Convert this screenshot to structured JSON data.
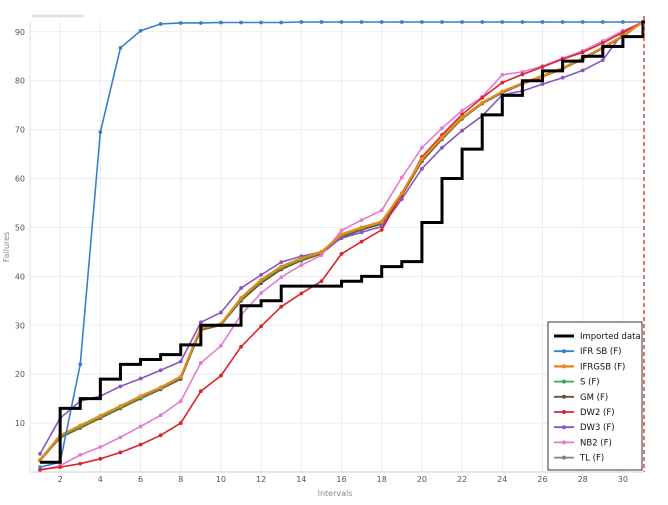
{
  "chart_data": {
    "type": "line",
    "xlabel": "Intervals",
    "ylabel": "Failures",
    "xlim": [
      0.5,
      31.1
    ],
    "ylim": [
      0,
      92
    ],
    "grid": true,
    "legend_position": "bottom-right",
    "x_ticks": [
      2,
      4,
      6,
      8,
      10,
      12,
      14,
      16,
      18,
      20,
      22,
      24,
      26,
      28,
      30
    ],
    "y_ticks": [
      10,
      20,
      30,
      40,
      50,
      60,
      70,
      80,
      90
    ],
    "x": [
      1,
      2,
      3,
      4,
      5,
      6,
      7,
      8,
      9,
      10,
      11,
      12,
      13,
      14,
      15,
      16,
      17,
      18,
      19,
      20,
      21,
      22,
      23,
      24,
      25,
      26,
      27,
      28,
      29,
      30,
      31
    ],
    "vertical_marker_x": 31,
    "colors": {
      "imported": "#000000",
      "ifr_sb": "#3a80c8",
      "ifrgsb": "#e8891e",
      "s": "#3aa84a",
      "gm": "#7a4a2a",
      "dw2": "#d9262a",
      "dw3": "#8a55c0",
      "nb2": "#e47bd0",
      "tl": "#7f7f7f",
      "marker_line": "#d9262a",
      "grid": "#ececec"
    },
    "imported_data": {
      "name": "Imported data",
      "values": [
        2,
        13,
        15,
        19,
        22,
        23,
        24,
        26,
        30,
        30,
        34,
        35,
        38,
        38,
        38,
        39,
        40,
        42,
        43,
        51,
        60,
        66,
        73,
        77,
        80,
        82,
        84,
        85,
        87,
        89,
        92
      ]
    },
    "series": [
      {
        "name": "IFR SB (F)",
        "color_key": "ifr_sb",
        "values": [
          1,
          2,
          22,
          69.5,
          86.7,
          90.2,
          91.6,
          91.8,
          91.8,
          91.9,
          91.9,
          91.9,
          91.9,
          92,
          92,
          92,
          92,
          92,
          92,
          92,
          92,
          92,
          92,
          92,
          92,
          92,
          92,
          92,
          92,
          92,
          92
        ]
      },
      {
        "name": "IFRGSB (F)",
        "color_key": "ifrgsb",
        "values": [
          2.5,
          7.5,
          9.5,
          11.5,
          13.5,
          15.5,
          17.3,
          19.5,
          29.5,
          30.3,
          35.6,
          39.3,
          42,
          43.7,
          45,
          48.6,
          50,
          51.2,
          57,
          64,
          68.4,
          72.5,
          75.5,
          77.8,
          79.5,
          81,
          82.6,
          84.6,
          86.8,
          89.2,
          92
        ]
      },
      {
        "name": "S (F)",
        "color_key": "s",
        "values": [
          2.4,
          7.2,
          9.2,
          11.2,
          13.2,
          15.2,
          17.1,
          19.3,
          29.3,
          30.1,
          35.3,
          39,
          41.7,
          43.4,
          44.8,
          48.3,
          49.8,
          51,
          56.8,
          63.8,
          68.2,
          72.3,
          75.4,
          77.6,
          79.4,
          80.9,
          82.5,
          84.5,
          86.7,
          89.1,
          92
        ]
      },
      {
        "name": "GM (F)",
        "color_key": "gm",
        "values": [
          2.3,
          7,
          9,
          11,
          13,
          15,
          16.9,
          19,
          29,
          30,
          35,
          38.6,
          41.4,
          43.2,
          44.6,
          48,
          49.5,
          50.7,
          56.5,
          63.5,
          68,
          72.2,
          75.3,
          77.5,
          79.3,
          80.8,
          82.4,
          84.4,
          86.6,
          89,
          92
        ]
      },
      {
        "name": "DW2 (F)",
        "color_key": "dw2",
        "values": [
          0.5,
          1,
          1.7,
          2.7,
          4,
          5.6,
          7.5,
          10,
          16.5,
          19.7,
          25.6,
          29.8,
          33.8,
          36.5,
          39,
          44.6,
          47.1,
          49.5,
          56.7,
          64.4,
          68.9,
          73.1,
          76.5,
          79.6,
          81.3,
          82.8,
          84.4,
          85.8,
          87.7,
          89.9,
          92
        ]
      },
      {
        "name": "DW3 (F)",
        "color_key": "dw3",
        "values": [
          3.7,
          11,
          14.5,
          15.5,
          17.5,
          19.1,
          20.8,
          22.6,
          30.6,
          32.6,
          37.6,
          40.3,
          42.9,
          44.1,
          45,
          47.8,
          49,
          50.2,
          55.8,
          62,
          66.3,
          69.8,
          72.8,
          77.1,
          77.9,
          79.3,
          80.6,
          82.1,
          84.2,
          89.8,
          92
        ]
      },
      {
        "name": "NB2 (F)",
        "color_key": "nb2",
        "values": [
          0.3,
          1.3,
          3.5,
          5.1,
          7.1,
          9.3,
          11.6,
          14.5,
          22.3,
          25.8,
          32.1,
          36.6,
          39.8,
          42.3,
          44.3,
          49.4,
          51.5,
          53.5,
          60.2,
          66.3,
          70.3,
          73.9,
          76.7,
          81.2,
          81.8,
          83,
          84.6,
          86.1,
          88.1,
          90.2,
          92
        ]
      },
      {
        "name": "TL (F)",
        "color_key": "tl",
        "values": [
          2.4,
          7.3,
          9.3,
          11.3,
          13.3,
          15.3,
          17.2,
          19.4,
          29.4,
          30.2,
          35.5,
          39.2,
          41.9,
          43.6,
          44.9,
          48.5,
          50,
          51.1,
          56.9,
          63.9,
          68.3,
          72.4,
          75.4,
          77.7,
          79.4,
          80.9,
          82.5,
          84.5,
          86.7,
          89.1,
          92
        ]
      }
    ]
  }
}
